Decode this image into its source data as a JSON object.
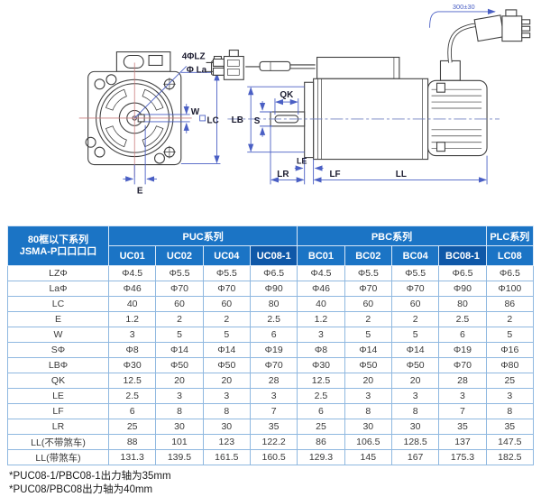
{
  "colors": {
    "header-blue": "#1b74c5",
    "header-dark": "#0f58a8",
    "tbl-border": "#8fb8e0",
    "tbl-outer": "#4e87c0",
    "ink": "#3f3f3f",
    "dimblue": "#4a5fc4",
    "centerred": "#c97b7b",
    "celltext": "#3a3a3a",
    "labelink": "#1b1b2f"
  },
  "diagram": {
    "labels": {
      "lz4": "4ΦLZ",
      "la": "Φ La",
      "w": "W",
      "lc": "LC",
      "e": "E",
      "qk": "QK",
      "s": "S",
      "lb": "LB",
      "le": "LE",
      "lr": "LR",
      "lf": "LF",
      "ll": "LL",
      "cable_length": "300±30"
    }
  },
  "table": {
    "corner_header": [
      "80框以下系列",
      "JSMA-P口口口口"
    ],
    "groups": [
      {
        "label": "PUC系列",
        "span": 4
      },
      {
        "label": "PBC系列",
        "span": 4
      },
      {
        "label": "PLC系列",
        "span": 1
      }
    ],
    "columns": [
      {
        "label": "UC01",
        "highlight": false
      },
      {
        "label": "UC02",
        "highlight": false
      },
      {
        "label": "UC04",
        "highlight": false
      },
      {
        "label": "UC08-1",
        "highlight": true
      },
      {
        "label": "BC01",
        "highlight": false
      },
      {
        "label": "BC02",
        "highlight": false
      },
      {
        "label": "BC04",
        "highlight": false
      },
      {
        "label": "BC08-1",
        "highlight": true
      },
      {
        "label": "LC08",
        "highlight": false
      }
    ],
    "rows": [
      {
        "label": "LZΦ",
        "values": [
          "Φ4.5",
          "Φ5.5",
          "Φ5.5",
          "Φ6.5",
          "Φ4.5",
          "Φ5.5",
          "Φ5.5",
          "Φ6.5",
          "Φ6.5"
        ]
      },
      {
        "label": "LaΦ",
        "values": [
          "Φ46",
          "Φ70",
          "Φ70",
          "Φ90",
          "Φ46",
          "Φ70",
          "Φ70",
          "Φ90",
          "Φ100"
        ]
      },
      {
        "label": "LC",
        "values": [
          "40",
          "60",
          "60",
          "80",
          "40",
          "60",
          "60",
          "80",
          "86"
        ]
      },
      {
        "label": "E",
        "values": [
          "1.2",
          "2",
          "2",
          "2.5",
          "1.2",
          "2",
          "2",
          "2.5",
          "2"
        ]
      },
      {
        "label": "W",
        "values": [
          "3",
          "5",
          "5",
          "6",
          "3",
          "5",
          "5",
          "6",
          "5"
        ]
      },
      {
        "label": "SΦ",
        "values": [
          "Φ8",
          "Φ14",
          "Φ14",
          "Φ19",
          "Φ8",
          "Φ14",
          "Φ14",
          "Φ19",
          "Φ16"
        ]
      },
      {
        "label": "LBΦ",
        "values": [
          "Φ30",
          "Φ50",
          "Φ50",
          "Φ70",
          "Φ30",
          "Φ50",
          "Φ50",
          "Φ70",
          "Φ80"
        ]
      },
      {
        "label": "QK",
        "values": [
          "12.5",
          "20",
          "20",
          "28",
          "12.5",
          "20",
          "20",
          "28",
          "25"
        ]
      },
      {
        "label": "LE",
        "values": [
          "2.5",
          "3",
          "3",
          "3",
          "2.5",
          "3",
          "3",
          "3",
          "3"
        ]
      },
      {
        "label": "LF",
        "values": [
          "6",
          "8",
          "8",
          "7",
          "6",
          "8",
          "8",
          "7",
          "8"
        ]
      },
      {
        "label": "LR",
        "values": [
          "25",
          "30",
          "30",
          "35",
          "25",
          "30",
          "30",
          "35",
          "35"
        ]
      },
      {
        "label": "LL(不带煞车)",
        "values": [
          "88",
          "101",
          "123",
          "122.2",
          "86",
          "106.5",
          "128.5",
          "137",
          "147.5"
        ]
      },
      {
        "label": "LL(带煞车)",
        "values": [
          "131.3",
          "139.5",
          "161.5",
          "160.5",
          "129.3",
          "145",
          "167",
          "175.3",
          "182.5"
        ]
      }
    ]
  },
  "footnotes": [
    "*PUC08-1/PBC08-1出力轴为35mm",
    "*PUC08/PBC08出力轴为40mm"
  ]
}
